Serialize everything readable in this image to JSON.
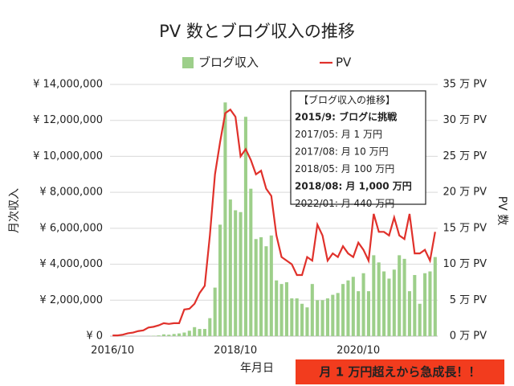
{
  "chart_data": {
    "type": "bar",
    "title": "PV 数とブログ収入の推移",
    "x_label": "年月日",
    "y_label": "月次収入",
    "y2_label": "PV 数",
    "categories": [
      "2016/10",
      null,
      null,
      null,
      null,
      null,
      null,
      null,
      null,
      null,
      null,
      null,
      null,
      null,
      null,
      null,
      null,
      null,
      null,
      null,
      null,
      null,
      null,
      null,
      "2018/10",
      null,
      null,
      null,
      null,
      null,
      null,
      null,
      null,
      null,
      null,
      null,
      null,
      null,
      null,
      null,
      null,
      null,
      null,
      null,
      null,
      null,
      null,
      null,
      "2020/10",
      null,
      null,
      null,
      null,
      null,
      null,
      null,
      null,
      null,
      null,
      null,
      null,
      null,
      null,
      null
    ],
    "series": [
      {
        "name": "ブログ収入",
        "type": "bar",
        "color": "#9dcf8a",
        "values": [
          0,
          0,
          0,
          0,
          0,
          0,
          0,
          10000,
          20000,
          40000,
          100000,
          80000,
          120000,
          150000,
          200000,
          300000,
          500000,
          400000,
          400000,
          1000000,
          2700000,
          6200000,
          13000000,
          7600000,
          7000000,
          6900000,
          12200000,
          8200000,
          5400000,
          5500000,
          5000000,
          5600000,
          3100000,
          2900000,
          3000000,
          2100000,
          2100000,
          1800000,
          1600000,
          2900000,
          2000000,
          2000000,
          2100000,
          2300000,
          2400000,
          2900000,
          3100000,
          3300000,
          2500000,
          3500000,
          2500000,
          4500000,
          4100000,
          3600000,
          3200000,
          3700000,
          4500000,
          4300000,
          2500000,
          3400000,
          1800000,
          3500000,
          3600000,
          4400000
        ]
      },
      {
        "name": "PV",
        "type": "line",
        "axis": "y2",
        "color": "#e0312b",
        "values": [
          0.1,
          0.1,
          0.2,
          0.4,
          0.5,
          0.7,
          0.8,
          1.2,
          1.3,
          1.5,
          1.8,
          1.7,
          1.8,
          1.8,
          3.7,
          3.8,
          4.5,
          6.0,
          7.0,
          14,
          22.5,
          27,
          31,
          31.5,
          30.5,
          25,
          26,
          24.5,
          22.5,
          23,
          20.5,
          19.5,
          14,
          11,
          10.5,
          10,
          8.5,
          8.5,
          11,
          10.5,
          15.5,
          14,
          10.5,
          11.5,
          11,
          12.5,
          11.5,
          11,
          13,
          12,
          10.5,
          17,
          14.5,
          14.5,
          14,
          16.5,
          14,
          13.5,
          17,
          11.5,
          11.5,
          12,
          10.5,
          14.5
        ]
      }
    ],
    "ylim": [
      0,
      14000000
    ],
    "yticks": [
      {
        "value": 0,
        "label": "¥ 0"
      },
      {
        "value": 2000000,
        "label": "¥ 2,000,000"
      },
      {
        "value": 4000000,
        "label": "¥ 4,000,000"
      },
      {
        "value": 6000000,
        "label": "¥ 6,000,000"
      },
      {
        "value": 8000000,
        "label": "¥ 8,000,000"
      },
      {
        "value": 10000000,
        "label": "¥ 10,000,000"
      },
      {
        "value": 12000000,
        "label": "¥ 12,000,000"
      },
      {
        "value": 14000000,
        "label": "¥ 14,000,000"
      }
    ],
    "y2lim": [
      0,
      35
    ],
    "y2ticks": [
      {
        "value": 0,
        "label": "0 万 PV"
      },
      {
        "value": 5,
        "label": "5 万 PV"
      },
      {
        "value": 10,
        "label": "10 万 PV"
      },
      {
        "value": 15,
        "label": "15 万 PV"
      },
      {
        "value": 20,
        "label": "20 万 PV"
      },
      {
        "value": 25,
        "label": "25 万 PV"
      },
      {
        "value": 30,
        "label": "30 万 PV"
      },
      {
        "value": 35,
        "label": "35 万 PV"
      }
    ],
    "grid": true,
    "legend": "top",
    "annotation": {
      "title": "【ブログ収入の推移】",
      "lines": [
        {
          "text": "2015/9: ブログに挑戦",
          "bold": true,
          "color": "#111111"
        },
        {
          "text": "2017/05: 月 1 万円",
          "bold": false,
          "color": "#111111"
        },
        {
          "text": "2017/08: 月 10 万円",
          "bold": false,
          "color": "#111111"
        },
        {
          "text": "2018/05: 月 100 万円",
          "bold": false,
          "color": "#111111"
        },
        {
          "text": "2018/08: 月 1,000 万円",
          "bold": true,
          "color": "#e8501f"
        },
        {
          "text": "2022/01: 月 440 万円",
          "bold": false,
          "color": "#111111"
        }
      ]
    },
    "banner": {
      "text": "月 1 万円超えから急成長！！",
      "color": "#f23c1e"
    }
  }
}
